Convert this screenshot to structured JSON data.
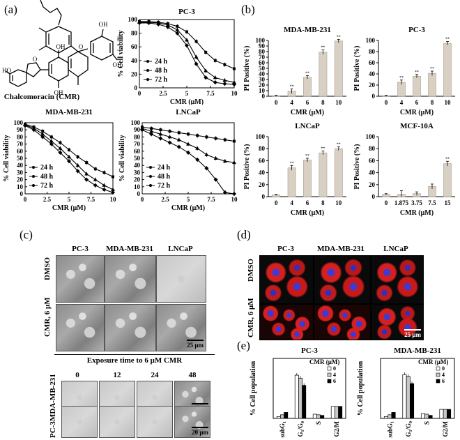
{
  "panels": {
    "a": {
      "label": "(a)",
      "compound_name": "Chalcomoracin (CMR)",
      "structure_labels": {
        "oh": "OH",
        "ho": "HO",
        "o": "O"
      }
    },
    "b": {
      "label": "(b)"
    },
    "c": {
      "label": "(c)",
      "columns": [
        "PC-3",
        "MDA-MB-231",
        "LNCaP"
      ],
      "rows": [
        "DMSO",
        "CMR, 6 μM"
      ],
      "scale_bar": "25 μm",
      "time_title": "Exposure time to 6 μM CMR",
      "time_columns": [
        "0",
        "12",
        "24",
        "48"
      ],
      "time_rows": [
        "MDA-MB-231",
        "PC-3"
      ],
      "time_scale_bar": "20 μm"
    },
    "d": {
      "label": "(d)",
      "columns": [
        "PC-3",
        "MDA-MB-231",
        "LNCaP"
      ],
      "rows": [
        "DMSO",
        "CMR, 6 μM"
      ],
      "scale_bar": "25 μm"
    },
    "e": {
      "label": "(e)"
    }
  },
  "chart_data": [
    {
      "id": "viability-pc3",
      "type": "line",
      "title": "PC-3",
      "xlabel": "CMR (μM)",
      "ylabel": "% Cell viability",
      "xlim": [
        0,
        10
      ],
      "ylim": [
        0,
        100
      ],
      "xticks": [
        "0",
        "2.5",
        "5",
        "7.5",
        "10"
      ],
      "yticks": [
        "0",
        "20",
        "40",
        "60",
        "80",
        "100"
      ],
      "x": [
        0,
        1,
        2,
        3,
        4,
        5,
        6,
        7,
        8,
        9,
        10
      ],
      "legend_position": "bottom-left",
      "series": [
        {
          "name": "24 h",
          "values": [
            97,
            97,
            96,
            94,
            90,
            82,
            68,
            52,
            40,
            34,
            28
          ]
        },
        {
          "name": "48 h",
          "values": [
            96,
            96,
            95,
            92,
            85,
            70,
            45,
            25,
            15,
            11,
            8
          ]
        },
        {
          "name": "72 h",
          "values": [
            95,
            95,
            93,
            89,
            80,
            62,
            35,
            15,
            8,
            6,
            5
          ]
        }
      ]
    },
    {
      "id": "viability-mda",
      "type": "line",
      "title": "MDA-MB-231",
      "xlabel": "CMR (μM)",
      "ylabel": "% Cell viability",
      "xlim": [
        0,
        10
      ],
      "ylim": [
        0,
        100
      ],
      "xticks": [
        "0",
        "2.5",
        "5",
        "7.5",
        "10"
      ],
      "yticks": [
        "0",
        "10",
        "20",
        "30",
        "40",
        "50",
        "60",
        "70",
        "80",
        "90",
        "100"
      ],
      "x": [
        0,
        1,
        2,
        3,
        4,
        5,
        6,
        7,
        8,
        9,
        10
      ],
      "legend_position": "bottom-left",
      "series": [
        {
          "name": "24 h",
          "values": [
            98,
            94,
            88,
            80,
            72,
            62,
            52,
            44,
            35,
            30,
            24
          ]
        },
        {
          "name": "48 h",
          "values": [
            97,
            92,
            84,
            74,
            64,
            52,
            40,
            28,
            20,
            12,
            6
          ]
        },
        {
          "name": "72 h",
          "values": [
            96,
            90,
            80,
            70,
            58,
            46,
            32,
            20,
            12,
            6,
            2
          ]
        }
      ]
    },
    {
      "id": "viability-lncap",
      "type": "line",
      "title": "LNCaP",
      "xlabel": "CMR (μM)",
      "ylabel": "% Cell viability",
      "xlim": [
        0,
        10
      ],
      "ylim": [
        0,
        100
      ],
      "xticks": [
        "0",
        "2.5",
        "5",
        "7.5",
        "10"
      ],
      "yticks": [
        "0",
        "10",
        "20",
        "30",
        "40",
        "50",
        "60",
        "70",
        "80",
        "90",
        "100"
      ],
      "x": [
        0,
        1,
        2,
        3,
        4,
        5,
        6,
        7,
        8,
        9,
        10
      ],
      "legend_position": "bottom-left",
      "series": [
        {
          "name": "24 h",
          "values": [
            94,
            92,
            90,
            88,
            86,
            84,
            82,
            80,
            78,
            76,
            74
          ]
        },
        {
          "name": "48 h",
          "values": [
            92,
            88,
            84,
            80,
            76,
            70,
            64,
            55,
            50,
            46,
            44
          ]
        },
        {
          "name": "72 h",
          "values": [
            90,
            84,
            78,
            72,
            66,
            58,
            48,
            36,
            20,
            2,
            0
          ]
        }
      ]
    },
    {
      "id": "pi-mda",
      "type": "bar",
      "title": "MDA-MB-231",
      "xlabel": "CMR (μM)",
      "ylabel": "PI Positive (%)",
      "ylim": [
        0,
        100
      ],
      "yticks": [
        "0",
        "10",
        "20",
        "30",
        "40",
        "50",
        "60",
        "70",
        "80",
        "90",
        "100"
      ],
      "categories": [
        "0",
        "4",
        "6",
        "8",
        "10"
      ],
      "values": [
        1,
        9,
        34,
        79,
        99
      ],
      "errors": [
        1,
        4,
        3,
        4,
        3
      ],
      "annotations": [
        "",
        "**",
        "**",
        "**",
        "**"
      ]
    },
    {
      "id": "pi-pc3",
      "type": "bar",
      "title": "PC-3",
      "xlabel": "CMR (μM)",
      "ylabel": "PI Positive (%)",
      "ylim": [
        0,
        100
      ],
      "yticks": [
        "0",
        "20",
        "40",
        "60",
        "80",
        "100"
      ],
      "categories": [
        "0",
        "4",
        "6",
        "8",
        "10"
      ],
      "values": [
        1,
        25,
        36,
        41,
        95
      ],
      "errors": [
        1,
        4,
        3,
        4,
        3
      ],
      "annotations": [
        "",
        "**",
        "**",
        "**",
        "**"
      ]
    },
    {
      "id": "pi-lncap",
      "type": "bar",
      "title": "LNCaP",
      "xlabel": "CMR (μM)",
      "ylabel": "PI Positive (%)",
      "ylim": [
        0,
        100
      ],
      "yticks": [
        "0",
        "20",
        "40",
        "60",
        "80",
        "100"
      ],
      "categories": [
        "0",
        "4",
        "6",
        "8",
        "10"
      ],
      "values": [
        3,
        48,
        61,
        73,
        80
      ],
      "errors": [
        1,
        4,
        3,
        3,
        3
      ],
      "annotations": [
        "",
        "**",
        "**",
        "**",
        "**"
      ]
    },
    {
      "id": "pi-mcf10a",
      "type": "bar",
      "title": "MCF-10A",
      "xlabel": "CMR (μM)",
      "ylabel": "PI Positive (%)",
      "ylim": [
        0,
        100
      ],
      "yticks": [
        "0",
        "20",
        "40",
        "60",
        "80",
        "100"
      ],
      "categories": [
        "0",
        "1.875",
        "3.75",
        "7.5",
        "15"
      ],
      "values": [
        4,
        4,
        5,
        17,
        55
      ],
      "errors": [
        1,
        6,
        3,
        4,
        4
      ],
      "annotations": [
        "",
        "",
        "",
        "",
        "**"
      ]
    },
    {
      "id": "cellcycle-pc3",
      "type": "bar",
      "title": "PC-3",
      "ylabel": "% Cell population",
      "legend_title": "CMR (μM)",
      "legend_position": "top-right",
      "categories": [
        "subG1",
        "G1/G0",
        "S",
        "G2/M"
      ],
      "series": [
        {
          "name": "0",
          "values": [
            3,
            72,
            7,
            20
          ]
        },
        {
          "name": "4",
          "values": [
            6,
            67,
            6,
            20
          ]
        },
        {
          "name": "6",
          "values": [
            10,
            55,
            5,
            20
          ]
        }
      ],
      "ylim": [
        0,
        100
      ]
    },
    {
      "id": "cellcycle-mda",
      "type": "bar",
      "title": "MDA-MB-231",
      "ylabel": "% Cell population",
      "legend_title": "CMR (μM)",
      "legend_position": "top-right",
      "categories": [
        "subG1",
        "G1/G0",
        "S",
        "G2/M"
      ],
      "series": [
        {
          "name": "0",
          "values": [
            3,
            73,
            8,
            15
          ]
        },
        {
          "name": "4",
          "values": [
            6,
            70,
            7,
            15
          ]
        },
        {
          "name": "6",
          "values": [
            10,
            58,
            5,
            15
          ]
        }
      ],
      "ylim": [
        0,
        100
      ]
    }
  ]
}
